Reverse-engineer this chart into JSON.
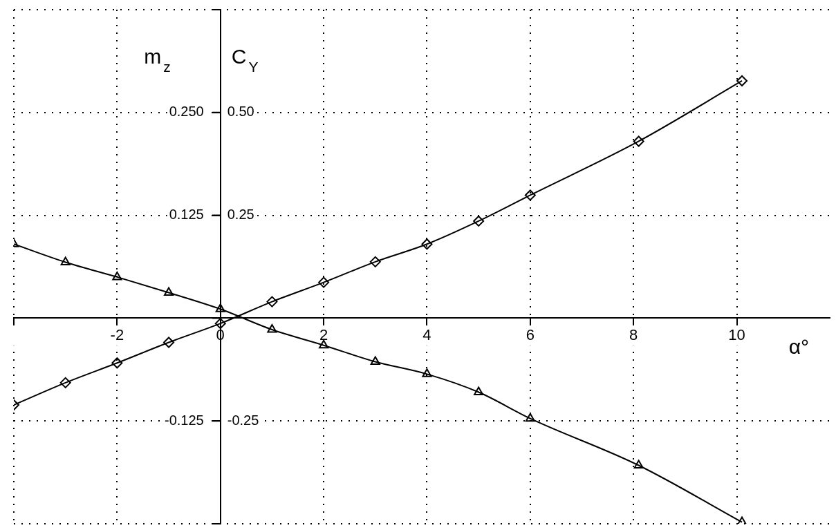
{
  "chart_data": {
    "type": "line",
    "xlabel": "α°",
    "ylabel": "C$_{Y}$",
    "y2label": "m$_{z}$",
    "x": [
      -4,
      -3,
      -2,
      -1,
      0,
      1,
      2,
      3,
      4,
      5,
      6,
      8.1,
      10.1
    ],
    "series": [
      {
        "color": "#000000",
        "marker": "diamond",
        "values": [
          -0.211,
          -0.157,
          -0.109,
          -0.059,
          -0.013,
          0.04,
          0.087,
          0.137,
          0.18,
          0.236,
          0.299,
          0.43,
          0.577
        ]
      },
      {
        "color": "#000000",
        "marker": "triangle",
        "axis": "y2",
        "values": [
          0.09,
          0.068,
          0.05,
          0.031,
          0.011,
          -0.014,
          -0.033,
          -0.053,
          -0.068,
          -0.09,
          -0.122,
          -0.179,
          -0.248
        ]
      }
    ],
    "xlim": [
      -4,
      11.8
    ],
    "xticks": [
      {
        "value": -4,
        "label": null
      },
      -2,
      0,
      2,
      4,
      6,
      8,
      10
    ],
    "ylim": [
      -0.5,
      0.75
    ],
    "yticks": [
      {
        "value": -0.5,
        "label": null
      },
      -0.25,
      {
        "value": 0,
        "label": null
      },
      0.25,
      {
        "value": 0.5,
        "label": "0.50"
      },
      {
        "value": 0.75,
        "label": null
      }
    ],
    "y2lim": [
      -0.25,
      0.375
    ],
    "y2ticks": [
      {
        "value": -0.25,
        "label": null
      },
      -0.125,
      {
        "value": 0,
        "label": null
      },
      0.125,
      {
        "value": 0.25,
        "label": "0.250"
      },
      {
        "value": 0.375,
        "label": null
      }
    ],
    "grid": true,
    "legend": false,
    "line_style": "solid"
  }
}
